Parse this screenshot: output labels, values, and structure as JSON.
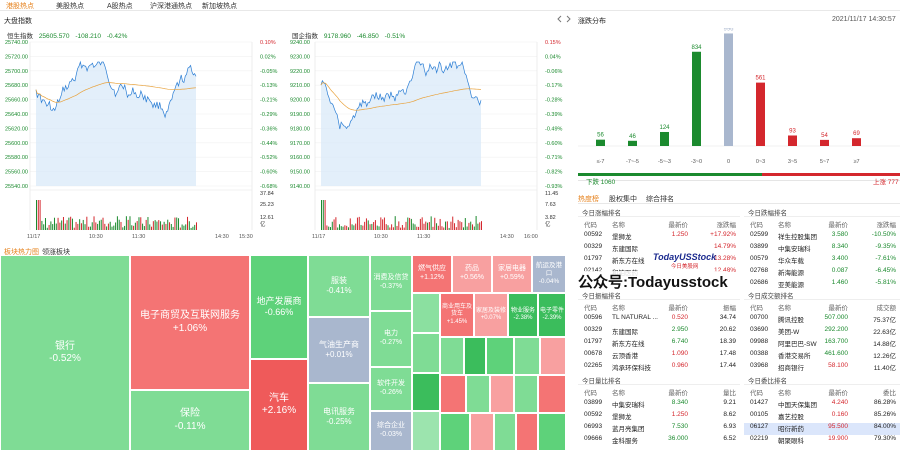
{
  "tabs": [
    "港股热点",
    "美股热点",
    "A股热点",
    "沪深港通热点",
    "新加坡热点"
  ],
  "market_panel": {
    "title": "大盘指数"
  },
  "hsi": {
    "name": "恒生指数",
    "price": "25605.570",
    "change": "-108.210",
    "pct": "-0.42%",
    "left_ticks": [
      "25740.00",
      "25720.00",
      "25700.00",
      "25680.00",
      "25660.00",
      "25640.00",
      "25620.00",
      "25600.00",
      "25580.00",
      "25560.00",
      "25540.00"
    ],
    "right_ticks": [
      "0.10%",
      "0.02%",
      "-0.05%",
      "-0.13%",
      "-0.21%",
      "-0.29%",
      "-0.36%",
      "-0.44%",
      "-0.52%",
      "-0.60%",
      "-0.68%"
    ],
    "vol_ticks": [
      "37.84",
      "25.23",
      "12.61"
    ],
    "vol_unit": "亿",
    "time_ticks": [
      "11/17",
      "10:30",
      "11:30",
      "14:30",
      "15:30"
    ]
  },
  "ssi": {
    "name": "国企指数",
    "price": "9178.960",
    "change": "-46.850",
    "pct": "-0.51%",
    "left_ticks": [
      "9240.00",
      "9230.00",
      "9220.00",
      "9210.00",
      "9200.00",
      "9190.00",
      "9180.00",
      "9170.00",
      "9160.00",
      "9150.00",
      "9140.00"
    ],
    "right_ticks": [
      "0.15%",
      "0.04%",
      "-0.06%",
      "-0.17%",
      "-0.28%",
      "-0.39%",
      "-0.49%",
      "-0.60%",
      "-0.71%",
      "-0.82%",
      "-0.93%"
    ],
    "vol_ticks": [
      "11.45",
      "7.63",
      "3.82"
    ],
    "vol_unit": "亿",
    "time_ticks": [
      "11/17",
      "10:30",
      "11:30",
      "14:30",
      "16:00"
    ]
  },
  "dist": {
    "title": "涨跌分布",
    "datetime": "2021/11/17 14:30:57",
    "bars": [
      {
        "label": "≤-7",
        "value": 56,
        "color": "#1b8a2e"
      },
      {
        "label": "-7~-5",
        "value": 46,
        "color": "#1b8a2e"
      },
      {
        "label": "-5~-3",
        "value": 124,
        "color": "#1b8a2e"
      },
      {
        "label": "-3~0",
        "value": 834,
        "color": "#1b8a2e"
      },
      {
        "label": "0",
        "value": 996,
        "color": "#a9b7ce"
      },
      {
        "label": "0~3",
        "value": 561,
        "color": "#d4272d"
      },
      {
        "label": "3~5",
        "value": 93,
        "color": "#d4272d"
      },
      {
        "label": "5~7",
        "value": 54,
        "color": "#d4272d"
      },
      {
        "label": "≥7",
        "value": 69,
        "color": "#d4272d"
      }
    ],
    "down_label": "下跌 1060",
    "up_label": "上涨 777"
  },
  "heat_tabs": [
    "板块热力图",
    "领涨板块"
  ],
  "heat_cells": [
    {
      "name": "银行",
      "pct": "-0.52%",
      "color": "#7fdc95"
    },
    {
      "name": "电子商贸及互联网服务",
      "pct": "+1.06%",
      "color": "#f47474"
    },
    {
      "name": "保险",
      "pct": "-0.11%",
      "color": "#7fdc95"
    },
    {
      "name": "地产发展商",
      "pct": "-0.66%",
      "color": "#5ed27a"
    },
    {
      "name": "汽车",
      "pct": "+2.16%",
      "color": "#ef5a5a"
    },
    {
      "name": "服装",
      "pct": "-0.41%",
      "color": "#7fdc95"
    },
    {
      "name": "气油生产商",
      "pct": "+0.01%",
      "color": "#a9b7ce"
    },
    {
      "name": "电讯服务",
      "pct": "-0.25%",
      "color": "#7fdc95"
    },
    {
      "name": "消费及信贷",
      "pct": "-0.37%",
      "color": "#7fdc95"
    },
    {
      "name": "电力",
      "pct": "-0.27%",
      "color": "#7fdc95"
    },
    {
      "name": "软件开发",
      "pct": "-0.26%",
      "color": "#7fdc95"
    },
    {
      "name": "综合企业",
      "pct": "-0.03%",
      "color": "#a9b7ce"
    },
    {
      "name": "燃气供应",
      "pct": "+1.12%",
      "color": "#f47474"
    },
    {
      "name": "药品",
      "pct": "+0.56%",
      "color": "#f8a0a0"
    },
    {
      "name": "家居电器",
      "pct": "+0.59%",
      "color": "#f8a0a0"
    },
    {
      "name": "航运及港口",
      "pct": "-0.04%",
      "color": "#a9b7ce"
    },
    {
      "name": "商业用车及货车",
      "pct": "+1.45%",
      "color": "#f47474"
    },
    {
      "name": "家居及装修",
      "pct": "+0.07%",
      "color": "#f8a0a0"
    },
    {
      "name": "物业服务",
      "pct": "-2.38%",
      "color": "#3bbd5c"
    },
    {
      "name": "电子零件",
      "pct": "-2.39%",
      "color": "#3bbd5c"
    }
  ],
  "tab_group": [
    "热度榜",
    "股权集中",
    "综合排名"
  ],
  "gainers": {
    "title": "今日涨幅排名",
    "cols": [
      "代码",
      "名称",
      "最新价",
      "涨跌幅"
    ],
    "rows": [
      [
        "00592",
        "堡狮龙",
        "1.250",
        "+17.92%"
      ],
      [
        "00329",
        "东建国际",
        "",
        "14.79%"
      ],
      [
        "01797",
        "新东方在线",
        "",
        "13.28%"
      ],
      [
        "02142",
        "和铂医药",
        "",
        "12.48%"
      ]
    ]
  },
  "losers": {
    "title": "今日跌幅排名",
    "cols": [
      "代码",
      "名称",
      "最新价",
      "涨跌幅"
    ],
    "rows": [
      [
        "02599",
        "祥生控股集团",
        "3.580",
        "-10.50%"
      ],
      [
        "03899",
        "中集安瑞科",
        "8.340",
        "-9.35%"
      ],
      [
        "00579",
        "华众车载",
        "3.400",
        "-7.61%"
      ],
      [
        "02768",
        "新海能源",
        "0.087",
        "-6.45%"
      ],
      [
        "02686",
        "亚美能源",
        "1.460",
        "-5.81%"
      ]
    ]
  },
  "amp": {
    "title": "今日振幅排名",
    "cols": [
      "代码",
      "名称",
      "最新价",
      "振幅"
    ],
    "rows": [
      [
        "00596",
        "TL NATURAL ...",
        "0.520",
        "34.74"
      ],
      [
        "00329",
        "东建国际",
        "2.950",
        "20.62"
      ],
      [
        "01797",
        "新东方在线",
        "6.740",
        "18.39"
      ],
      [
        "00678",
        "云顶香港",
        "1.090",
        "17.48"
      ],
      [
        "02265",
        "鸿承环保科技",
        "0.960",
        "17.44"
      ]
    ]
  },
  "turnover": {
    "title": "今日成交额排名",
    "cols": [
      "代码",
      "名称",
      "最新价",
      "成交额"
    ],
    "rows": [
      [
        "00700",
        "腾讯控股",
        "507.000",
        "75.37亿"
      ],
      [
        "03690",
        "美团-W",
        "292.200",
        "22.63亿"
      ],
      [
        "09988",
        "阿里巴巴-SW",
        "163.700",
        "14.88亿"
      ],
      [
        "00388",
        "香港交易所",
        "461.600",
        "12.26亿"
      ],
      [
        "03968",
        "招商银行",
        "58.100",
        "11.40亿"
      ]
    ]
  },
  "volr": {
    "title": "今日量比排名",
    "cols": [
      "代码",
      "名称",
      "最新价",
      "量比"
    ],
    "rows": [
      [
        "03899",
        "中集安瑞科",
        "8.340",
        "9.21"
      ],
      [
        "00592",
        "堡狮龙",
        "1.250",
        "8.62"
      ],
      [
        "06993",
        "蓝月亮集团",
        "7.530",
        "6.93"
      ],
      [
        "09666",
        "金科服务",
        "36.000",
        "6.52"
      ]
    ]
  },
  "commit": {
    "title": "今日委比排名",
    "cols": [
      "代码",
      "名称",
      "最新价",
      "委比"
    ],
    "rows": [
      [
        "01427",
        "中国天保集团",
        "4.240",
        "86.28%"
      ],
      [
        "00105",
        "嘉艺控股",
        "0.160",
        "85.26%"
      ],
      [
        "06127",
        "昭衍新药",
        "95.500",
        "84.00%"
      ],
      [
        "02219",
        "朝聚眼科",
        "19.900",
        "79.30%"
      ]
    ]
  },
  "watermark": {
    "line1": "公众号:Todayusstock",
    "logo": "TodayUSStock",
    "logo_sub": "今日美股网"
  }
}
